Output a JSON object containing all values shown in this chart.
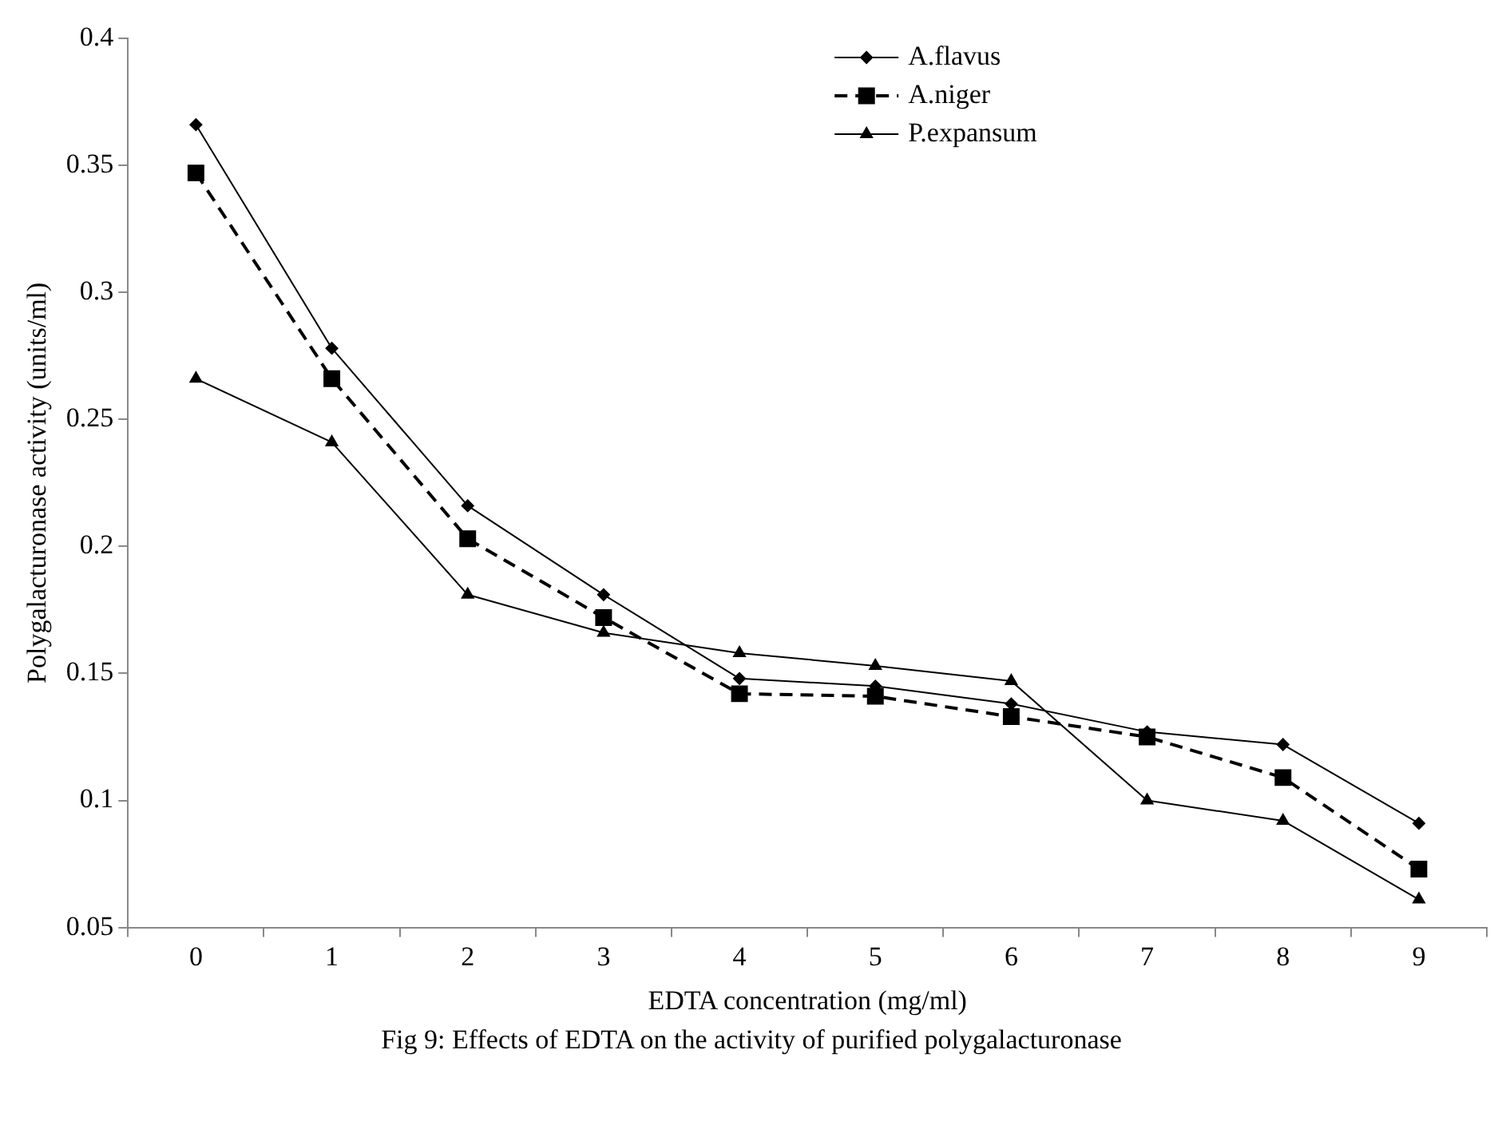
{
  "chart_data": {
    "type": "line",
    "title": "Fig 9: Effects of EDTA on the activity of purified polygalacturonase",
    "xlabel": "EDTA concentration (mg/ml)",
    "ylabel": "Polygalacturonase activity (units/ml)",
    "categories": [
      "0",
      "1",
      "2",
      "3",
      "4",
      "5",
      "6",
      "7",
      "8",
      "9"
    ],
    "series": [
      {
        "name": "A.flavus",
        "color": "#000000",
        "marker": "diamond",
        "line_style": "solid",
        "values": [
          0.366,
          0.278,
          0.216,
          0.181,
          0.148,
          0.145,
          0.138,
          0.127,
          0.122,
          0.091
        ]
      },
      {
        "name": "A.niger",
        "color": "#000000",
        "marker": "square",
        "line_style": "dashed",
        "values": [
          0.347,
          0.266,
          0.203,
          0.172,
          0.142,
          0.141,
          0.133,
          0.125,
          0.109,
          0.073
        ]
      },
      {
        "name": "P.expansum",
        "color": "#000000",
        "marker": "triangle",
        "line_style": "solid",
        "values": [
          0.266,
          0.241,
          0.181,
          0.166,
          0.158,
          0.153,
          0.147,
          0.1,
          0.092,
          0.061
        ]
      }
    ],
    "ylim": [
      0.05,
      0.4
    ],
    "yticks": [
      0.05,
      0.1,
      0.15,
      0.2,
      0.25,
      0.3,
      0.35,
      0.4
    ],
    "grid": false,
    "legend": "top right"
  }
}
